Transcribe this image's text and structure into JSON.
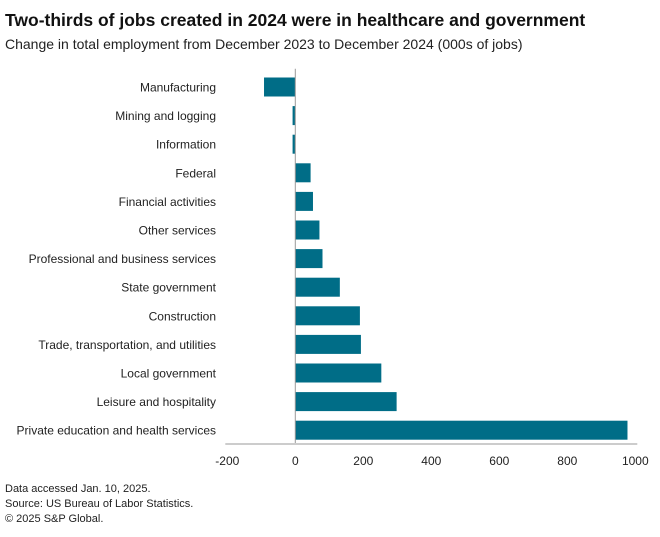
{
  "chart_data": {
    "type": "bar",
    "orientation": "horizontal",
    "title": "Two-thirds of jobs created in 2024 were in healthcare and government",
    "subtitle": "Change in total employment from December 2023 to December 2024 (000s of jobs)",
    "categories": [
      "Manufacturing",
      "Mining and logging",
      "Information",
      "Federal",
      "Financial activities",
      "Other services",
      "Professional and business services",
      "State government",
      "Construction",
      "Trade, transportation, and utilities",
      "Local government",
      "Leisure and hospitality",
      "Private education and health services"
    ],
    "values": [
      -92,
      -8,
      -8,
      45,
      52,
      71,
      80,
      131,
      190,
      193,
      253,
      298,
      977
    ],
    "xlim": [
      -200,
      1000
    ],
    "xticks": [
      -200,
      0,
      200,
      400,
      600,
      800,
      1000
    ],
    "grid": false,
    "bar_color": "#006d87"
  },
  "notes": [
    "Data accessed Jan. 10, 2025.",
    "Source: US Bureau of Labor Statistics.",
    "© 2025 S&P Global."
  ]
}
